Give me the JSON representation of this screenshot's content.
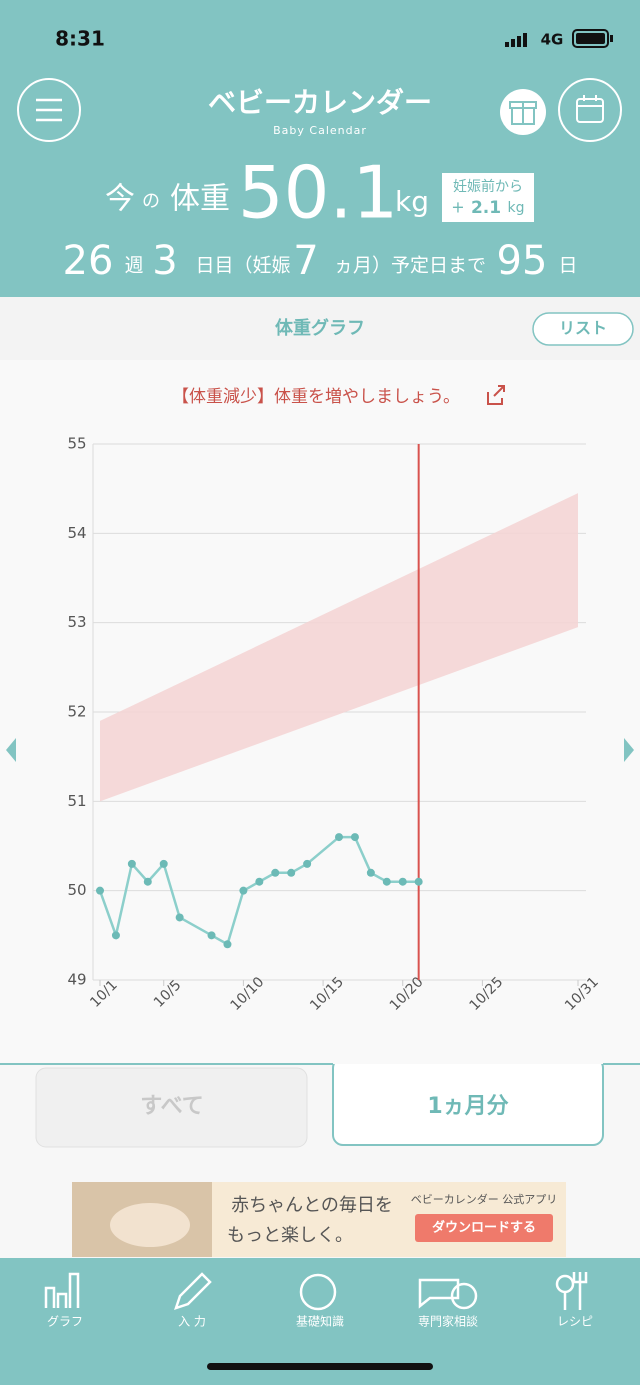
{
  "status_bar": {
    "time": "8:31",
    "network": "4G"
  },
  "header": {
    "logo": "ベビーカレンダー",
    "logo_sub": "Baby Calendar"
  },
  "weight": {
    "now": "今",
    "no": "の",
    "label": "体重",
    "value": 50.1,
    "unit": "kg",
    "gain_label": "妊娠前から",
    "gain_sign": "+",
    "gain": 2.1,
    "gain_unit": "kg"
  },
  "pregnancy": {
    "weeks": 26,
    "weeks_unit": "週",
    "days": 3,
    "days_unit": "日目（妊娠",
    "months": 7,
    "months_unit": "ヵ月）予定日まで",
    "remaining": 95,
    "remaining_unit": "日"
  },
  "graph_header": {
    "title": "体重グラフ",
    "list_button": "リスト",
    "warning": "【体重減少】体重を増やしましょう。"
  },
  "chart_data": {
    "type": "line",
    "x": [
      1,
      2,
      3,
      4,
      5,
      6,
      8,
      9,
      10,
      11,
      12,
      13,
      14,
      16,
      17,
      18,
      19,
      20,
      21
    ],
    "series": [
      {
        "color": "#8ccfcb",
        "values": [
          50.0,
          49.5,
          50.3,
          50.1,
          50.3,
          49.7,
          49.5,
          49.4,
          50.0,
          50.1,
          50.2,
          50.2,
          50.3,
          50.6,
          50.6,
          50.2,
          50.1,
          50.1,
          50.1
        ]
      }
    ],
    "band": {
      "x": [
        1,
        31
      ],
      "lower": [
        51.0,
        52.95
      ],
      "upper": [
        51.9,
        54.45
      ],
      "color": "#f5d3d3"
    },
    "today_x": 21,
    "today_color": "#d9534f",
    "xlim": [
      1,
      31
    ],
    "xticks": [
      {
        "value": 1,
        "label": "10/1"
      },
      {
        "value": 5,
        "label": "10/5"
      },
      {
        "value": 10,
        "label": "10/10"
      },
      {
        "value": 15,
        "label": "10/15"
      },
      {
        "value": 20,
        "label": "10/20"
      },
      {
        "value": 25,
        "label": "10/25"
      },
      {
        "value": 31,
        "label": "10/31"
      }
    ],
    "ylim": [
      49,
      55
    ],
    "yticks": [
      49,
      50,
      51,
      52,
      53,
      54,
      55
    ],
    "grid": true
  },
  "tabs": {
    "all": "すべて",
    "month": "1ヵ月分"
  },
  "ad": {
    "line1": "赤ちゃんとの毎日を",
    "line2": "もっと楽しく。",
    "app": "ベビーカレンダー 公式アプリ",
    "button": "ダウンロードする"
  },
  "nav": [
    "グラフ",
    "入 力",
    "基礎知識",
    "専門家相談",
    "レシピ"
  ]
}
